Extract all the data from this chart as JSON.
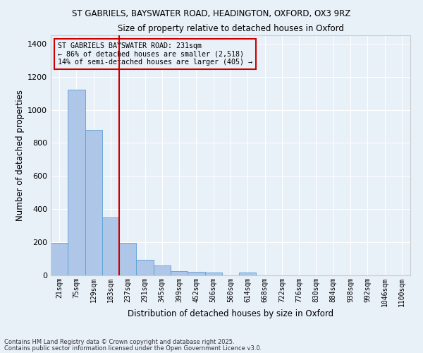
{
  "title1": "ST GABRIELS, BAYSWATER ROAD, HEADINGTON, OXFORD, OX3 9RZ",
  "title2": "Size of property relative to detached houses in Oxford",
  "xlabel": "Distribution of detached houses by size in Oxford",
  "ylabel": "Number of detached properties",
  "categories": [
    "21sqm",
    "75sqm",
    "129sqm",
    "183sqm",
    "237sqm",
    "291sqm",
    "345sqm",
    "399sqm",
    "452sqm",
    "506sqm",
    "560sqm",
    "614sqm",
    "668sqm",
    "722sqm",
    "776sqm",
    "830sqm",
    "884sqm",
    "938sqm",
    "992sqm",
    "1046sqm",
    "1100sqm"
  ],
  "values": [
    195,
    1120,
    880,
    350,
    195,
    95,
    58,
    25,
    22,
    15,
    0,
    15,
    0,
    0,
    0,
    0,
    0,
    0,
    0,
    0,
    0
  ],
  "bar_color": "#aec6e8",
  "bar_edge_color": "#5a9fd4",
  "vline_color": "#cc0000",
  "annotation_text": "ST GABRIELS BAYSWATER ROAD: 231sqm\n← 86% of detached houses are smaller (2,518)\n14% of semi-detached houses are larger (405) →",
  "ylim": [
    0,
    1450
  ],
  "yticks": [
    0,
    200,
    400,
    600,
    800,
    1000,
    1200,
    1400
  ],
  "bg_color": "#e8f0f8",
  "grid_color": "#ffffff",
  "footer1": "Contains HM Land Registry data © Crown copyright and database right 2025.",
  "footer2": "Contains public sector information licensed under the Open Government Licence v3.0."
}
